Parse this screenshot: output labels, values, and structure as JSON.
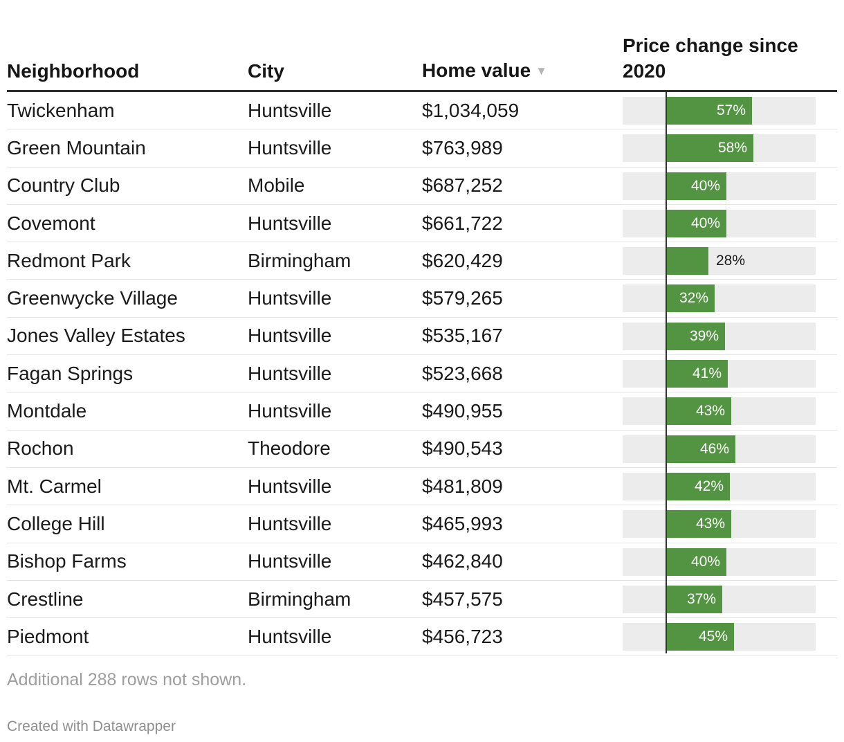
{
  "table": {
    "columns": [
      {
        "key": "neighborhood",
        "label": "Neighborhood"
      },
      {
        "key": "city",
        "label": "City"
      },
      {
        "key": "home_value",
        "label": "Home value",
        "sort_icon": "▼",
        "sort_dir": "desc"
      },
      {
        "key": "price_change",
        "label": "Price change since 2020"
      }
    ]
  },
  "chart_data": {
    "type": "table",
    "columns": [
      "Neighborhood",
      "City",
      "Home value",
      "Price change since 2020"
    ],
    "bar_column": "Price change since 2020",
    "bar_axis": {
      "min": -29,
      "max": 99,
      "zero": 0
    },
    "label_inside_threshold_pct": 30,
    "rows": [
      {
        "neighborhood": "Twickenham",
        "city": "Huntsville",
        "home_value": "$1,034,059",
        "price_change_pct": 57
      },
      {
        "neighborhood": "Green Mountain",
        "city": "Huntsville",
        "home_value": "$763,989",
        "price_change_pct": 58
      },
      {
        "neighborhood": "Country Club",
        "city": "Mobile",
        "home_value": "$687,252",
        "price_change_pct": 40
      },
      {
        "neighborhood": "Covemont",
        "city": "Huntsville",
        "home_value": "$661,722",
        "price_change_pct": 40
      },
      {
        "neighborhood": "Redmont Park",
        "city": "Birmingham",
        "home_value": "$620,429",
        "price_change_pct": 28
      },
      {
        "neighborhood": "Greenwycke Village",
        "city": "Huntsville",
        "home_value": "$579,265",
        "price_change_pct": 32
      },
      {
        "neighborhood": "Jones Valley Estates",
        "city": "Huntsville",
        "home_value": "$535,167",
        "price_change_pct": 39
      },
      {
        "neighborhood": "Fagan Springs",
        "city": "Huntsville",
        "home_value": "$523,668",
        "price_change_pct": 41
      },
      {
        "neighborhood": "Montdale",
        "city": "Huntsville",
        "home_value": "$490,955",
        "price_change_pct": 43
      },
      {
        "neighborhood": "Rochon",
        "city": "Theodore",
        "home_value": "$490,543",
        "price_change_pct": 46
      },
      {
        "neighborhood": "Mt. Carmel",
        "city": "Huntsville",
        "home_value": "$481,809",
        "price_change_pct": 42
      },
      {
        "neighborhood": "College Hill",
        "city": "Huntsville",
        "home_value": "$465,993",
        "price_change_pct": 43
      },
      {
        "neighborhood": "Bishop Farms",
        "city": "Huntsville",
        "home_value": "$462,840",
        "price_change_pct": 40
      },
      {
        "neighborhood": "Crestline",
        "city": "Birmingham",
        "home_value": "$457,575",
        "price_change_pct": 37
      },
      {
        "neighborhood": "Piedmont",
        "city": "Huntsville",
        "home_value": "$456,723",
        "price_change_pct": 45
      }
    ],
    "colors": {
      "bar": "#529442",
      "bar_track": "#ececec",
      "zero_line": "#333333",
      "label_inside": "#ffffff",
      "label_outside": "#1a1a1a"
    }
  },
  "footer": {
    "note": "Additional 288 rows not shown.",
    "credit": "Created with Datawrapper"
  }
}
